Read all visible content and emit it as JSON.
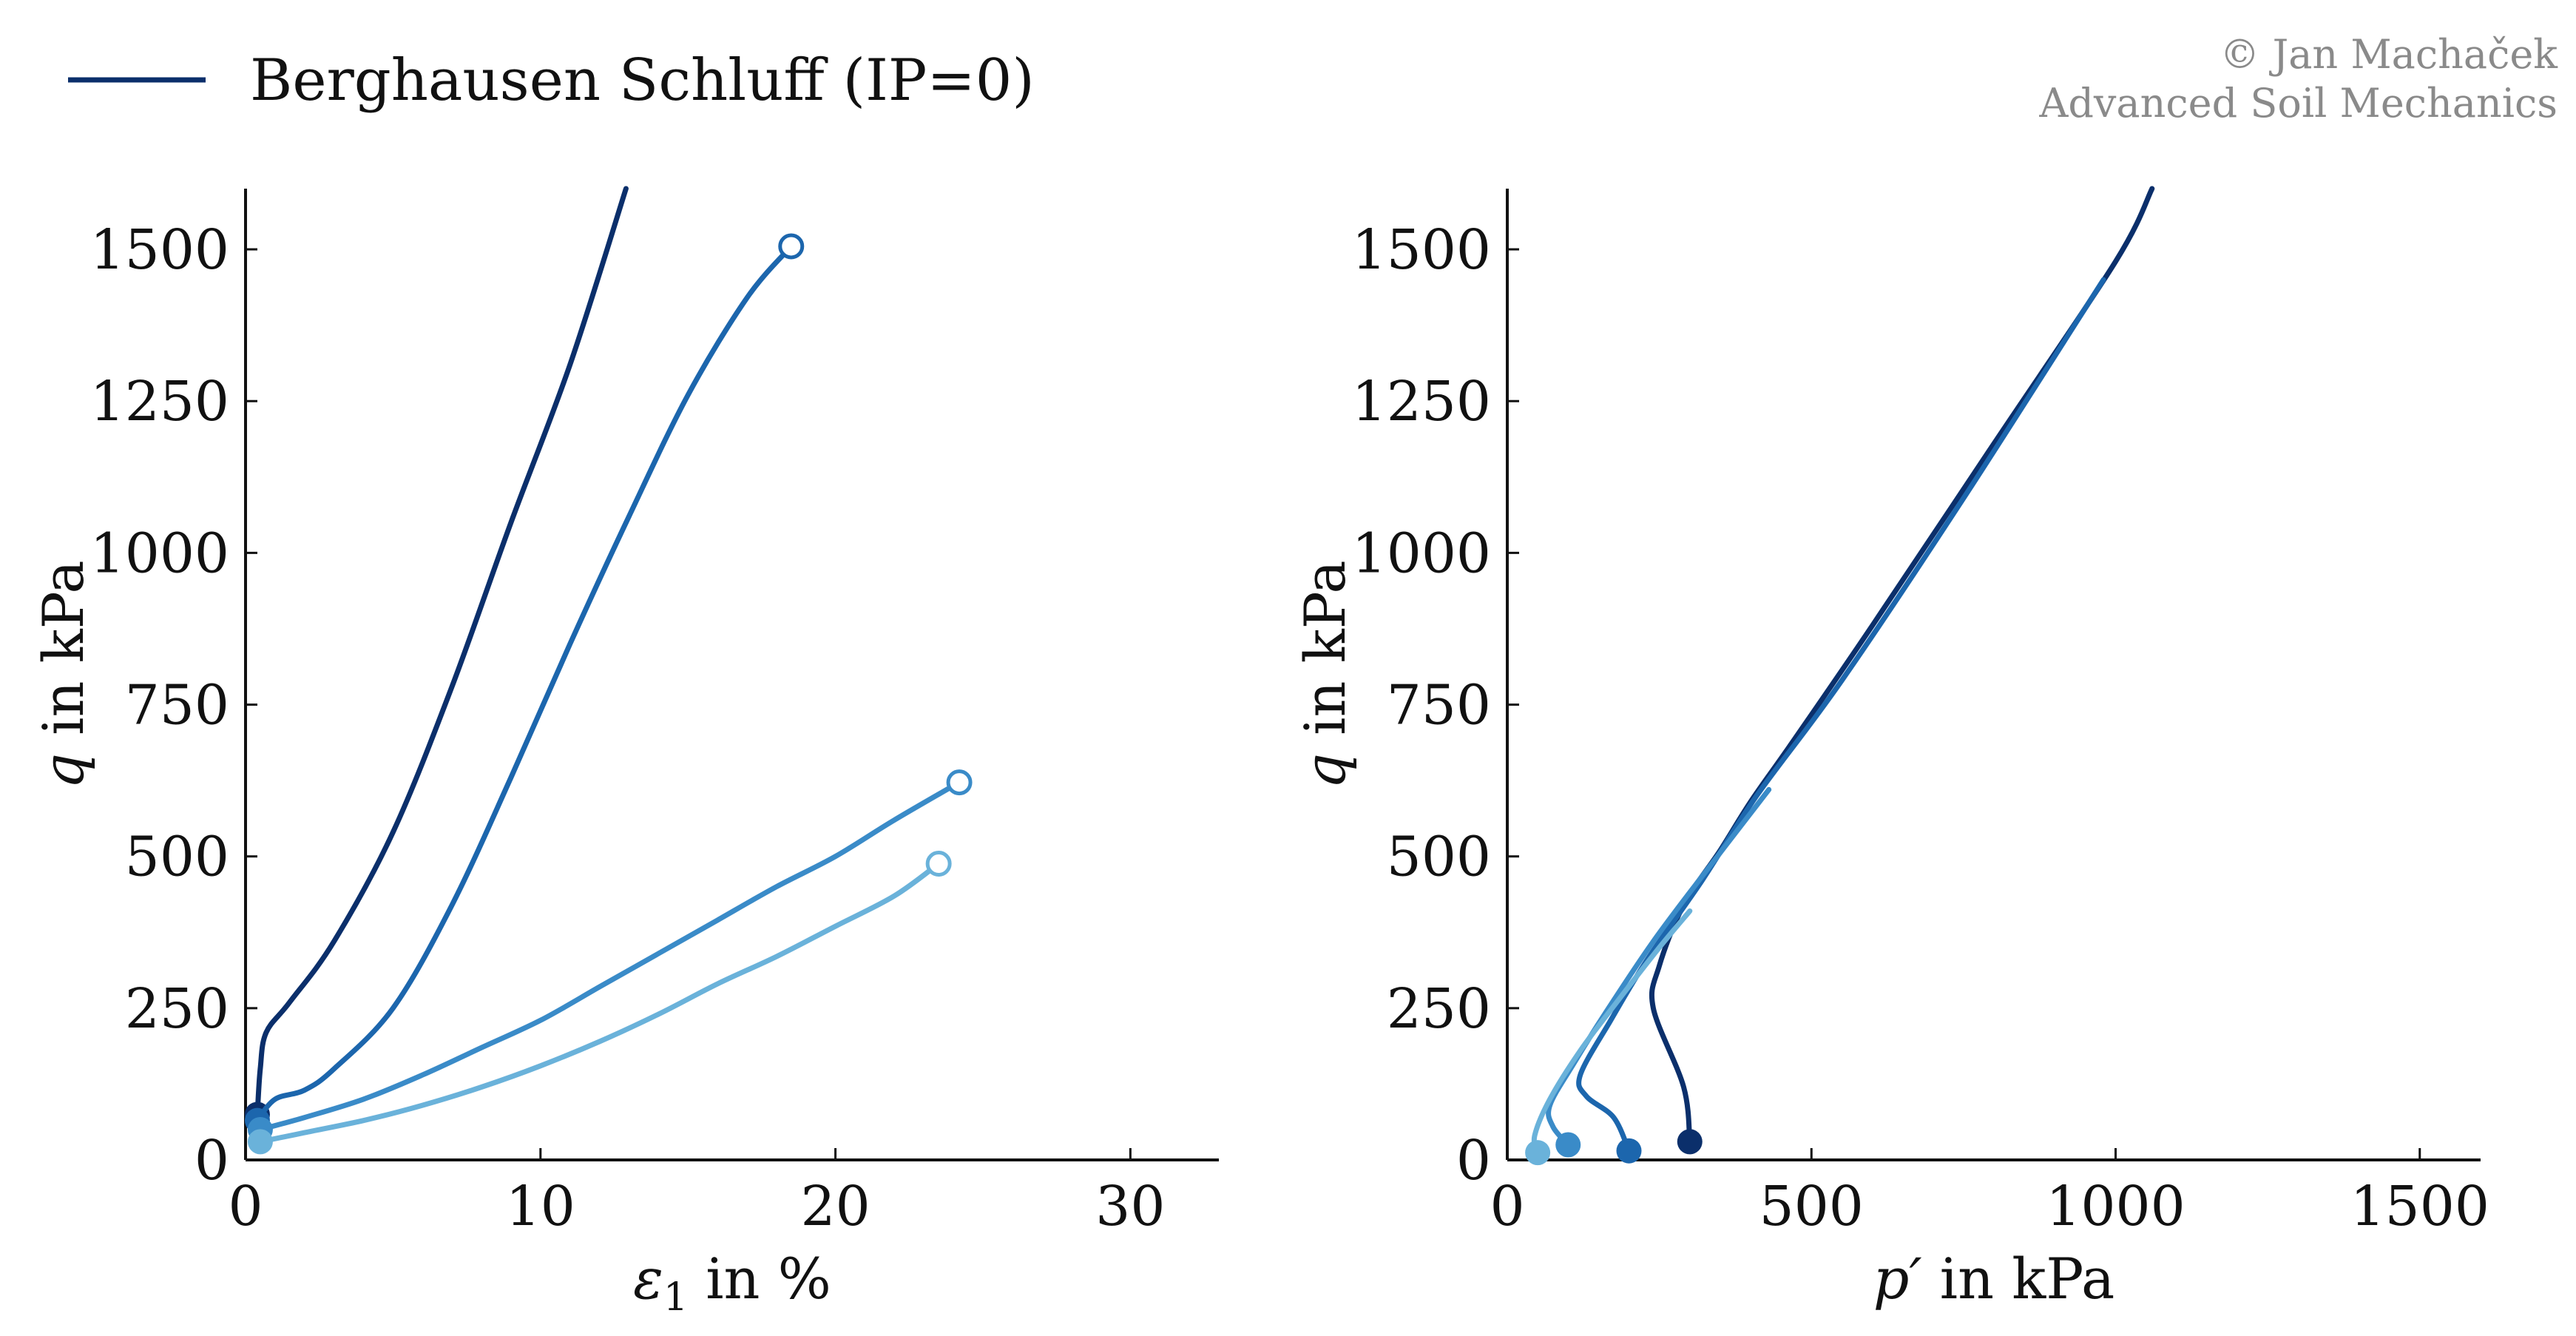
{
  "legend": {
    "label": "Berghausen Schluff (IP=0)",
    "color": "#0b2f6b"
  },
  "credit": {
    "line1": "© Jan Machaček",
    "line2": "Advanced Soil Mechanics"
  },
  "chart_data": [
    {
      "type": "line",
      "xlabel_symbol": "ε",
      "xlabel_subscript": "1",
      "xlabel_rest": " in %",
      "ylabel_symbol": "q",
      "ylabel_rest": " in kPa",
      "xlim": [
        0,
        33
      ],
      "ylim": [
        0,
        1600
      ],
      "xticks": [
        "0",
        "10",
        "20",
        "30"
      ],
      "xtick_values": [
        0,
        10,
        20,
        30
      ],
      "yticks": [
        "0",
        "250",
        "500",
        "750",
        "1000",
        "1250",
        "1500"
      ],
      "ytick_values": [
        0,
        250,
        500,
        750,
        1000,
        1250,
        1500
      ],
      "series": [
        {
          "color": "#0b2f6b",
          "start_marker": "filled",
          "end_marker": "none",
          "points": [
            [
              0.4,
              75
            ],
            [
              0.5,
              150
            ],
            [
              0.7,
              210
            ],
            [
              1.5,
              260
            ],
            [
              3,
              360
            ],
            [
              5,
              540
            ],
            [
              7,
              780
            ],
            [
              9,
              1050
            ],
            [
              11,
              1310
            ],
            [
              12.9,
              1600
            ]
          ]
        },
        {
          "color": "#1c66ad",
          "start_marker": "filled",
          "end_marker": "open",
          "points": [
            [
              0.4,
              65
            ],
            [
              1,
              100
            ],
            [
              2,
              115
            ],
            [
              3,
              150
            ],
            [
              5,
              250
            ],
            [
              7,
              420
            ],
            [
              9,
              630
            ],
            [
              11,
              850
            ],
            [
              13,
              1060
            ],
            [
              15,
              1260
            ],
            [
              17,
              1420
            ],
            [
              18.5,
              1505
            ]
          ]
        },
        {
          "color": "#3a8bc8",
          "start_marker": "filled",
          "end_marker": "open",
          "points": [
            [
              0.5,
              50
            ],
            [
              2,
              70
            ],
            [
              4,
              100
            ],
            [
              6,
              140
            ],
            [
              8,
              185
            ],
            [
              10,
              230
            ],
            [
              12,
              285
            ],
            [
              14,
              340
            ],
            [
              16,
              395
            ],
            [
              18,
              450
            ],
            [
              20,
              500
            ],
            [
              22,
              560
            ],
            [
              24.2,
              622
            ]
          ]
        },
        {
          "color": "#6ab2da",
          "start_marker": "filled",
          "end_marker": "open",
          "points": [
            [
              0.5,
              30
            ],
            [
              2,
              45
            ],
            [
              4,
              65
            ],
            [
              6,
              90
            ],
            [
              8,
              120
            ],
            [
              10,
              155
            ],
            [
              12,
              195
            ],
            [
              14,
              240
            ],
            [
              16,
              290
            ],
            [
              18,
              335
            ],
            [
              20,
              385
            ],
            [
              22,
              435
            ],
            [
              23.5,
              488
            ]
          ]
        }
      ]
    },
    {
      "type": "line",
      "xlabel_symbol": "p′",
      "xlabel_rest": " in kPa",
      "ylabel_symbol": "q",
      "ylabel_rest": " in kPa",
      "xlim": [
        0,
        1600
      ],
      "ylim": [
        0,
        1600
      ],
      "xticks": [
        "0",
        "500",
        "1000",
        "1500"
      ],
      "xtick_values": [
        0,
        500,
        1000,
        1500
      ],
      "yticks": [
        "0",
        "250",
        "500",
        "750",
        "1000",
        "1250",
        "1500"
      ],
      "ytick_values": [
        0,
        250,
        500,
        750,
        1000,
        1250,
        1500
      ],
      "series": [
        {
          "color": "#0b2f6b",
          "start_marker": "filled",
          "end_marker": "none",
          "points": [
            [
              300,
              30
            ],
            [
              290,
              120
            ],
            [
              240,
              250
            ],
            [
              250,
              320
            ],
            [
              290,
              420
            ],
            [
              350,
              510
            ],
            [
              400,
              590
            ],
            [
              470,
              690
            ],
            [
              600,
              880
            ],
            [
              800,
              1180
            ],
            [
              1000,
              1480
            ],
            [
              1060,
              1600
            ]
          ]
        },
        {
          "color": "#1c66ad",
          "start_marker": "filled",
          "end_marker": "none",
          "points": [
            [
              200,
              15
            ],
            [
              175,
              70
            ],
            [
              130,
              105
            ],
            [
              120,
              140
            ],
            [
              170,
              230
            ],
            [
              230,
              330
            ],
            [
              320,
              460
            ],
            [
              410,
              600
            ],
            [
              550,
              790
            ],
            [
              750,
              1090
            ],
            [
              980,
              1450
            ]
          ]
        },
        {
          "color": "#3a8bc8",
          "start_marker": "filled",
          "end_marker": "none",
          "points": [
            [
              100,
              25
            ],
            [
              75,
              55
            ],
            [
              70,
              90
            ],
            [
              110,
              160
            ],
            [
              160,
              240
            ],
            [
              240,
              360
            ],
            [
              330,
              480
            ],
            [
              430,
              610
            ]
          ]
        },
        {
          "color": "#6ab2da",
          "start_marker": "filled",
          "end_marker": "none",
          "points": [
            [
              50,
              12
            ],
            [
              45,
              40
            ],
            [
              70,
              100
            ],
            [
              120,
              180
            ],
            [
              180,
              260
            ],
            [
              250,
              350
            ],
            [
              300,
              410
            ]
          ]
        }
      ]
    }
  ]
}
